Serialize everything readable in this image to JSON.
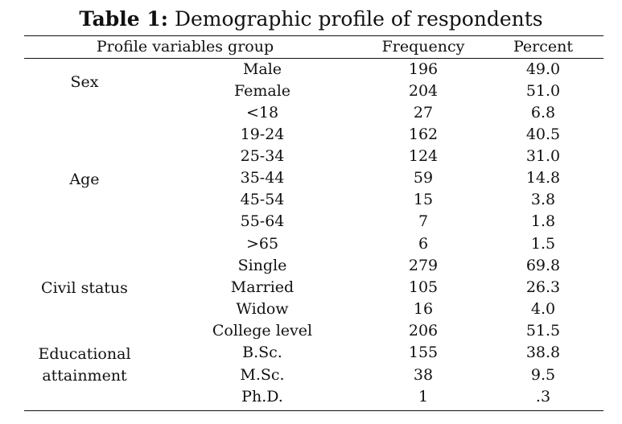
{
  "title": {
    "label": "Table 1:",
    "text": " Demographic profile of respondents"
  },
  "headers": {
    "profile": "Profile variables group",
    "frequency": "Frequency",
    "percent": "Percent"
  },
  "groups": [
    {
      "lines": [
        "Sex"
      ]
    },
    {
      "lines": [
        "Age"
      ]
    },
    {
      "lines": [
        "Civil status"
      ]
    },
    {
      "lines": [
        "Educational",
        "attainment"
      ]
    }
  ],
  "rows": [
    {
      "sub": "Male",
      "freq": "196",
      "pct": "49.0"
    },
    {
      "sub": "Female",
      "freq": "204",
      "pct": "51.0"
    },
    {
      "sub": "<18",
      "freq": "27",
      "pct": "6.8"
    },
    {
      "sub": "19-24",
      "freq": "162",
      "pct": "40.5"
    },
    {
      "sub": "25-34",
      "freq": "124",
      "pct": "31.0"
    },
    {
      "sub": "35-44",
      "freq": "59",
      "pct": "14.8"
    },
    {
      "sub": "45-54",
      "freq": "15",
      "pct": "3.8"
    },
    {
      "sub": "55-64",
      "freq": "7",
      "pct": "1.8"
    },
    {
      "sub": ">65",
      "freq": "6",
      "pct": "1.5"
    },
    {
      "sub": "Single",
      "freq": "279",
      "pct": "69.8"
    },
    {
      "sub": "Married",
      "freq": "105",
      "pct": "26.3"
    },
    {
      "sub": "Widow",
      "freq": "16",
      "pct": "4.0"
    },
    {
      "sub": "College level",
      "freq": "206",
      "pct": "51.5"
    },
    {
      "sub": "B.Sc.",
      "freq": "155",
      "pct": "38.8"
    },
    {
      "sub": "M.Sc.",
      "freq": "38",
      "pct": "9.5"
    },
    {
      "sub": "Ph.D.",
      "freq": "1",
      "pct": ".3"
    }
  ]
}
